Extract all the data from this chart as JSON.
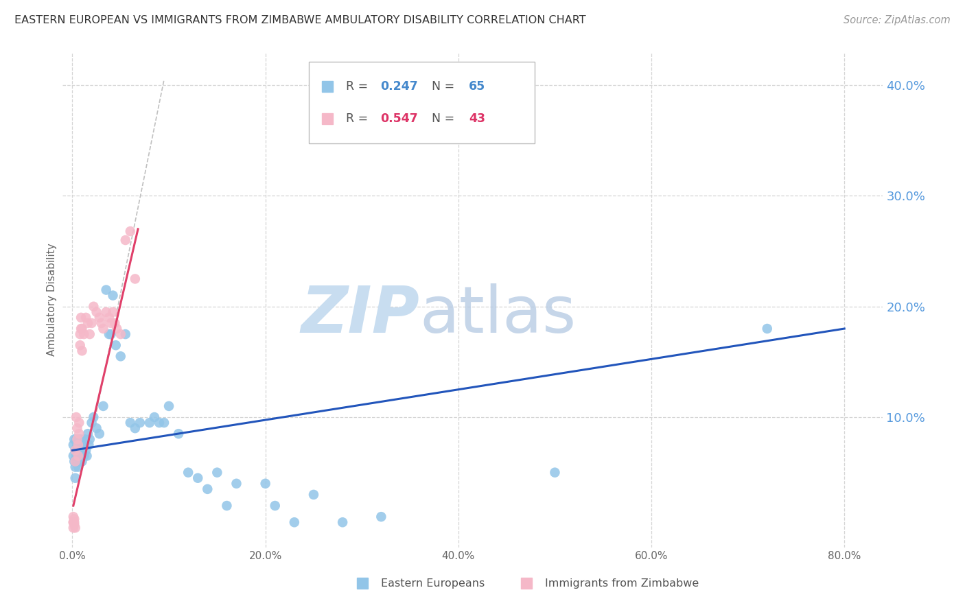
{
  "title": "EASTERN EUROPEAN VS IMMIGRANTS FROM ZIMBABWE AMBULATORY DISABILITY CORRELATION CHART",
  "source": "Source: ZipAtlas.com",
  "ylabel": "Ambulatory Disability",
  "xlim": [
    -0.01,
    0.84
  ],
  "ylim": [
    -0.018,
    0.43
  ],
  "xticks": [
    0.0,
    0.2,
    0.4,
    0.6,
    0.8
  ],
  "yticks_right": [
    0.1,
    0.2,
    0.3,
    0.4
  ],
  "r_blue": 0.247,
  "n_blue": 65,
  "r_pink": 0.547,
  "n_pink": 43,
  "blue_color": "#92c5e8",
  "pink_color": "#f5b8c8",
  "blue_line_color": "#2255bb",
  "pink_line_color": "#e0406a",
  "gray_line_color": "#c8c8c8",
  "blue_scatter_x": [
    0.001,
    0.001,
    0.002,
    0.002,
    0.003,
    0.003,
    0.003,
    0.004,
    0.004,
    0.005,
    0.005,
    0.005,
    0.006,
    0.006,
    0.007,
    0.007,
    0.008,
    0.008,
    0.009,
    0.009,
    0.01,
    0.01,
    0.011,
    0.012,
    0.013,
    0.014,
    0.015,
    0.016,
    0.017,
    0.018,
    0.02,
    0.022,
    0.025,
    0.028,
    0.032,
    0.035,
    0.038,
    0.04,
    0.042,
    0.045,
    0.05,
    0.055,
    0.06,
    0.065,
    0.07,
    0.08,
    0.085,
    0.09,
    0.095,
    0.1,
    0.11,
    0.12,
    0.13,
    0.14,
    0.15,
    0.16,
    0.17,
    0.2,
    0.21,
    0.23,
    0.25,
    0.28,
    0.32,
    0.5,
    0.72
  ],
  "blue_scatter_y": [
    0.075,
    0.065,
    0.08,
    0.06,
    0.07,
    0.055,
    0.045,
    0.08,
    0.065,
    0.07,
    0.075,
    0.06,
    0.065,
    0.055,
    0.08,
    0.07,
    0.06,
    0.075,
    0.065,
    0.08,
    0.07,
    0.06,
    0.075,
    0.065,
    0.08,
    0.07,
    0.065,
    0.085,
    0.075,
    0.08,
    0.095,
    0.1,
    0.09,
    0.085,
    0.11,
    0.215,
    0.175,
    0.175,
    0.21,
    0.165,
    0.155,
    0.175,
    0.095,
    0.09,
    0.095,
    0.095,
    0.1,
    0.095,
    0.095,
    0.11,
    0.085,
    0.05,
    0.045,
    0.035,
    0.05,
    0.02,
    0.04,
    0.04,
    0.02,
    0.005,
    0.03,
    0.005,
    0.01,
    0.05,
    0.18
  ],
  "pink_scatter_x": [
    0.001,
    0.001,
    0.002,
    0.002,
    0.003,
    0.003,
    0.004,
    0.005,
    0.005,
    0.006,
    0.006,
    0.007,
    0.007,
    0.008,
    0.008,
    0.009,
    0.009,
    0.01,
    0.01,
    0.012,
    0.014,
    0.016,
    0.018,
    0.02,
    0.022,
    0.025,
    0.028,
    0.03,
    0.032,
    0.035,
    0.038,
    0.04,
    0.042,
    0.044,
    0.046,
    0.05,
    0.055,
    0.06,
    0.065,
    0.001,
    0.001,
    0.002,
    0.003
  ],
  "pink_scatter_y": [
    0.005,
    0.01,
    0.003,
    0.008,
    0.07,
    0.06,
    0.1,
    0.09,
    0.08,
    0.075,
    0.065,
    0.085,
    0.095,
    0.165,
    0.175,
    0.18,
    0.19,
    0.16,
    0.18,
    0.175,
    0.19,
    0.185,
    0.175,
    0.185,
    0.2,
    0.195,
    0.19,
    0.185,
    0.18,
    0.195,
    0.19,
    0.185,
    0.195,
    0.185,
    0.18,
    0.175,
    0.26,
    0.268,
    0.225,
    0.005,
    0.0,
    0.005,
    0.0
  ],
  "blue_line_x": [
    0.0,
    0.8
  ],
  "blue_line_y": [
    0.07,
    0.18
  ],
  "pink_line_x": [
    0.001,
    0.068
  ],
  "pink_line_y": [
    0.02,
    0.27
  ],
  "gray_line_x": [
    0.025,
    0.095
  ],
  "gray_line_y": [
    0.105,
    0.405
  ]
}
